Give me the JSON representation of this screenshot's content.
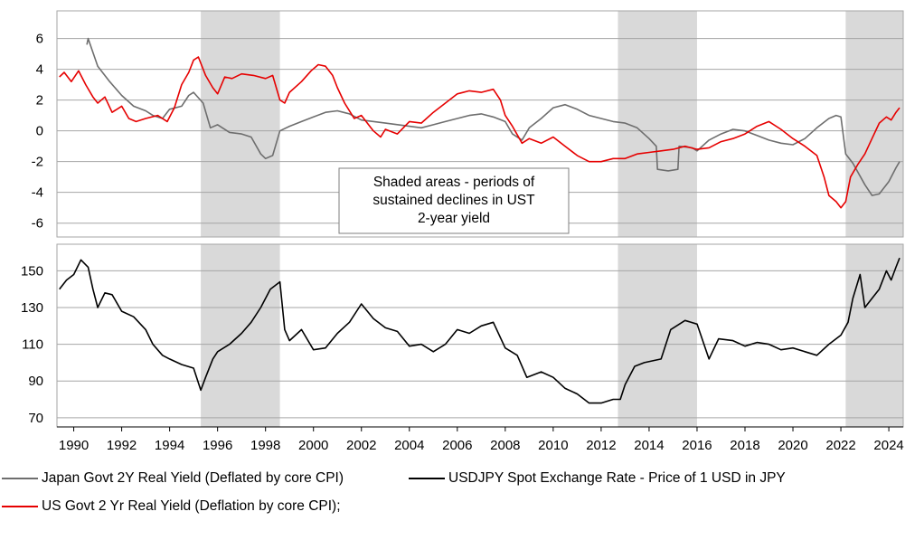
{
  "chart_data": [
    {
      "type": "line",
      "title": "",
      "xlabel": "",
      "ylabel": "",
      "ylim": [
        -7,
        8
      ],
      "yticks": [
        6,
        4,
        2,
        0,
        -2,
        -4,
        -6
      ],
      "x_range": [
        1989.3,
        2024.6
      ],
      "grid": true,
      "shaded_periods": [
        [
          1995.3,
          1998.6
        ],
        [
          2012.7,
          2016.0
        ],
        [
          2022.2,
          2024.6
        ]
      ],
      "annotation": [
        "Shaded areas - periods of",
        "sustained declines in UST",
        "2-year yield"
      ],
      "series": [
        {
          "name": "Japan Govt 2Y Real Yield (Deflated by core CPI)",
          "color": "#6e6e6e",
          "x": [
            1990.55,
            1990.6,
            1991.0,
            1991.5,
            1992.0,
            1992.5,
            1993.0,
            1993.3,
            1993.7,
            1994.0,
            1994.5,
            1994.8,
            1995.0,
            1995.4,
            1995.7,
            1996.0,
            1996.5,
            1997.0,
            1997.4,
            1997.8,
            1998.0,
            1998.3,
            1998.6,
            1999.0,
            1999.5,
            2000.0,
            2000.5,
            2001.0,
            2001.5,
            2002.0,
            2003.0,
            2004.0,
            2004.5,
            2005.0,
            2005.5,
            2006.0,
            2006.5,
            2007.0,
            2007.5,
            2008.0,
            2008.3,
            2008.7,
            2009.0,
            2009.5,
            2010.0,
            2010.5,
            2011.0,
            2011.5,
            2012.0,
            2012.5,
            2013.0,
            2013.5,
            2014.0,
            2014.3,
            2014.35,
            2014.8,
            2015.2,
            2015.25,
            2015.8,
            2016.0,
            2016.5,
            2017.0,
            2017.5,
            2018.0,
            2018.5,
            2019.0,
            2019.5,
            2020.0,
            2020.5,
            2021.0,
            2021.5,
            2021.8,
            2022.0,
            2022.2,
            2022.5,
            2023.0,
            2023.3,
            2023.6,
            2024.0,
            2024.3,
            2024.45
          ],
          "y": [
            5.6,
            6.0,
            4.2,
            3.2,
            2.3,
            1.6,
            1.3,
            1.0,
            0.8,
            1.4,
            1.6,
            2.3,
            2.5,
            1.8,
            0.2,
            0.4,
            -0.1,
            -0.2,
            -0.4,
            -1.5,
            -1.8,
            -1.6,
            0.0,
            0.3,
            0.6,
            0.9,
            1.2,
            1.3,
            1.1,
            0.7,
            0.5,
            0.3,
            0.2,
            0.4,
            0.6,
            0.8,
            1.0,
            1.1,
            0.9,
            0.6,
            -0.2,
            -0.6,
            0.2,
            0.8,
            1.5,
            1.7,
            1.4,
            1.0,
            0.8,
            0.6,
            0.5,
            0.2,
            -0.5,
            -1.0,
            -2.5,
            -2.6,
            -2.5,
            -1.0,
            -1.1,
            -1.3,
            -0.6,
            -0.2,
            0.1,
            0.0,
            -0.3,
            -0.6,
            -0.8,
            -0.9,
            -0.5,
            0.2,
            0.8,
            1.0,
            0.9,
            -1.5,
            -2.1,
            -3.5,
            -4.2,
            -4.1,
            -3.3,
            -2.4,
            -2.0
          ]
        },
        {
          "name": "US Govt 2 Yr Real Yield (Deflation by core CPI);",
          "color": "#e60000",
          "x": [
            1989.4,
            1989.6,
            1989.9,
            1990.2,
            1990.5,
            1990.8,
            1991.0,
            1991.3,
            1991.6,
            1992.0,
            1992.3,
            1992.6,
            1993.0,
            1993.5,
            1993.9,
            1994.2,
            1994.5,
            1994.8,
            1995.0,
            1995.2,
            1995.5,
            1995.8,
            1996.0,
            1996.3,
            1996.6,
            1997.0,
            1997.5,
            1998.0,
            1998.3,
            1998.6,
            1998.8,
            1999.0,
            1999.5,
            1999.9,
            2000.2,
            2000.5,
            2000.8,
            2001.0,
            2001.3,
            2001.7,
            2002.0,
            2002.5,
            2002.8,
            2003.0,
            2003.5,
            2004.0,
            2004.5,
            2005.0,
            2005.5,
            2006.0,
            2006.5,
            2007.0,
            2007.5,
            2007.8,
            2008.0,
            2008.3,
            2008.7,
            2009.0,
            2009.5,
            2010.0,
            2010.5,
            2011.0,
            2011.5,
            2012.0,
            2012.5,
            2013.0,
            2013.5,
            2014.0,
            2014.5,
            2015.0,
            2015.5,
            2016.0,
            2016.5,
            2017.0,
            2017.5,
            2018.0,
            2018.5,
            2019.0,
            2019.5,
            2020.0,
            2020.5,
            2021.0,
            2021.3,
            2021.5,
            2021.8,
            2022.0,
            2022.2,
            2022.4,
            2022.7,
            2023.0,
            2023.3,
            2023.6,
            2023.9,
            2024.1,
            2024.3,
            2024.45
          ],
          "y": [
            3.5,
            3.8,
            3.2,
            3.9,
            3.0,
            2.2,
            1.8,
            2.2,
            1.2,
            1.6,
            0.8,
            0.6,
            0.8,
            1.0,
            0.6,
            1.5,
            3.0,
            3.8,
            4.6,
            4.8,
            3.6,
            2.8,
            2.4,
            3.5,
            3.4,
            3.7,
            3.6,
            3.4,
            3.6,
            2.0,
            1.8,
            2.5,
            3.2,
            3.9,
            4.3,
            4.2,
            3.6,
            2.8,
            1.8,
            0.8,
            1.0,
            0.0,
            -0.4,
            0.1,
            -0.2,
            0.6,
            0.5,
            1.2,
            1.8,
            2.4,
            2.6,
            2.5,
            2.7,
            2.0,
            1.0,
            0.3,
            -0.8,
            -0.5,
            -0.8,
            -0.4,
            -1.0,
            -1.6,
            -2.0,
            -2.0,
            -1.8,
            -1.8,
            -1.5,
            -1.4,
            -1.3,
            -1.2,
            -1.0,
            -1.2,
            -1.1,
            -0.7,
            -0.5,
            -0.2,
            0.3,
            0.6,
            0.1,
            -0.5,
            -1.0,
            -1.6,
            -3.0,
            -4.2,
            -4.6,
            -5.0,
            -4.6,
            -3.0,
            -2.2,
            -1.5,
            -0.5,
            0.5,
            0.9,
            0.7,
            1.2,
            1.5
          ]
        }
      ]
    },
    {
      "type": "line",
      "title": "",
      "xlabel": "",
      "ylabel": "",
      "ylim": [
        65,
        165
      ],
      "yticks": [
        150,
        130,
        110,
        90,
        70
      ],
      "x_range": [
        1989.3,
        2024.6
      ],
      "xticks": [
        "1990",
        "1992",
        "1994",
        "1996",
        "1998",
        "2000",
        "2002",
        "2004",
        "2006",
        "2008",
        "2010",
        "2012",
        "2014",
        "2016",
        "2018",
        "2020",
        "2022",
        "2024"
      ],
      "grid": true,
      "shaded_periods": [
        [
          1995.3,
          1998.6
        ],
        [
          2012.7,
          2016.0
        ],
        [
          2022.2,
          2024.6
        ]
      ],
      "series": [
        {
          "name": "USDJPY Spot Exchange Rate - Price of 1 USD in JPY",
          "color": "#000000",
          "x": [
            1989.4,
            1989.7,
            1990.0,
            1990.3,
            1990.6,
            1990.8,
            1991.0,
            1991.3,
            1991.6,
            1992.0,
            1992.5,
            1993.0,
            1993.3,
            1993.7,
            1994.0,
            1994.5,
            1995.0,
            1995.3,
            1995.5,
            1995.8,
            1996.0,
            1996.5,
            1997.0,
            1997.4,
            1997.8,
            1998.2,
            1998.6,
            1998.8,
            1999.0,
            1999.5,
            2000.0,
            2000.5,
            2001.0,
            2001.5,
            2002.0,
            2002.5,
            2003.0,
            2003.5,
            2004.0,
            2004.5,
            2005.0,
            2005.5,
            2006.0,
            2006.5,
            2007.0,
            2007.5,
            2008.0,
            2008.5,
            2008.9,
            2009.5,
            2010.0,
            2010.5,
            2011.0,
            2011.5,
            2012.0,
            2012.5,
            2012.8,
            2013.0,
            2013.4,
            2013.8,
            2014.5,
            2014.9,
            2015.5,
            2016.0,
            2016.5,
            2016.9,
            2017.5,
            2018.0,
            2018.5,
            2019.0,
            2019.5,
            2020.0,
            2020.5,
            2021.0,
            2021.5,
            2022.0,
            2022.3,
            2022.5,
            2022.8,
            2023.0,
            2023.3,
            2023.6,
            2023.9,
            2024.1,
            2024.3,
            2024.45
          ],
          "y": [
            140,
            145,
            148,
            156,
            152,
            140,
            130,
            138,
            137,
            128,
            125,
            118,
            110,
            104,
            102,
            99,
            97,
            85,
            92,
            102,
            106,
            110,
            116,
            122,
            130,
            140,
            144,
            118,
            112,
            118,
            107,
            108,
            116,
            122,
            132,
            124,
            119,
            117,
            109,
            110,
            106,
            110,
            118,
            116,
            120,
            122,
            108,
            104,
            92,
            95,
            92,
            86,
            83,
            78,
            78,
            80,
            80,
            88,
            98,
            100,
            102,
            118,
            123,
            121,
            102,
            113,
            112,
            109,
            111,
            110,
            107,
            108,
            106,
            104,
            110,
            115,
            122,
            135,
            148,
            130,
            135,
            140,
            150,
            145,
            152,
            157
          ]
        }
      ]
    }
  ],
  "legend": {
    "japan": "Japan Govt 2Y Real Yield (Deflated by core CPI)",
    "usdjpy": "USDJPY Spot Exchange Rate - Price of 1 USD in JPY",
    "us": "US Govt 2 Yr Real Yield (Deflation by core CPI);"
  },
  "colors": {
    "japan": "#6e6e6e",
    "us": "#e60000",
    "usdjpy": "#000000",
    "shade": "#d9d9d9",
    "grid": "#a6a6a6"
  }
}
